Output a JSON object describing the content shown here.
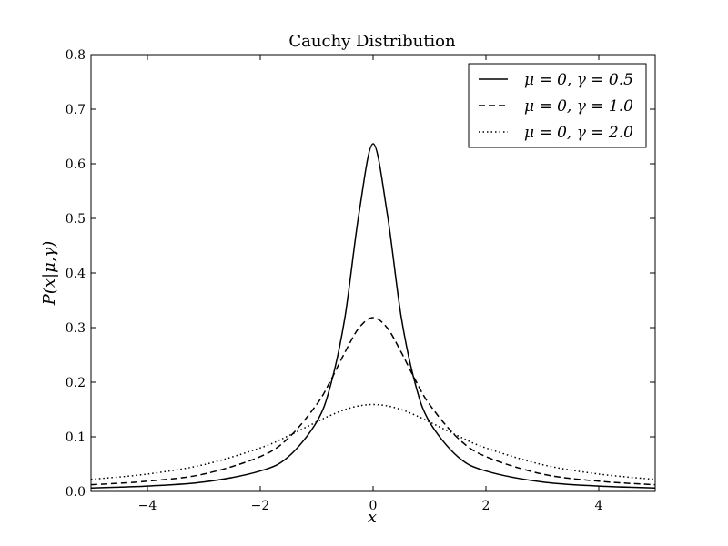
{
  "chart_data": {
    "type": "line",
    "title": "Cauchy Distribution",
    "xlabel": "x",
    "ylabel": "P(x|μ,γ)",
    "xlim": [
      -5,
      5
    ],
    "ylim": [
      0,
      0.8
    ],
    "xticks": [
      -4,
      -2,
      0,
      2,
      4
    ],
    "xtick_labels": [
      "−4",
      "−2",
      "0",
      "2",
      "4"
    ],
    "yticks": [
      0.0,
      0.1,
      0.2,
      0.3,
      0.4,
      0.5,
      0.6,
      0.7,
      0.8
    ],
    "ytick_labels": [
      "0.0",
      "0.1",
      "0.2",
      "0.3",
      "0.4",
      "0.5",
      "0.6",
      "0.7",
      "0.8"
    ],
    "grid": false,
    "legend_position": "top-right",
    "series": [
      {
        "name": "μ = 0, γ = 0.5",
        "style": "solid",
        "color": "#000000",
        "x": [
          -5,
          -4,
          -3,
          -2,
          -1.5,
          -1,
          -0.75,
          -0.5,
          -0.25,
          0,
          0.25,
          0.5,
          0.75,
          1,
          1.5,
          2,
          3,
          4,
          5
        ],
        "y": [
          0.0063,
          0.0098,
          0.0172,
          0.0374,
          0.0637,
          0.1273,
          0.1959,
          0.3183,
          0.5093,
          0.6366,
          0.5093,
          0.3183,
          0.1959,
          0.1273,
          0.0637,
          0.0374,
          0.0172,
          0.0098,
          0.0063
        ]
      },
      {
        "name": "μ = 0, γ = 1.0",
        "style": "dashed",
        "color": "#000000",
        "x": [
          -5,
          -4,
          -3,
          -2,
          -1.5,
          -1,
          -0.75,
          -0.5,
          -0.25,
          0,
          0.25,
          0.5,
          0.75,
          1,
          1.5,
          2,
          3,
          4,
          5
        ],
        "y": [
          0.0122,
          0.0187,
          0.0318,
          0.0637,
          0.0979,
          0.1592,
          0.2037,
          0.2546,
          0.2996,
          0.3183,
          0.2996,
          0.2546,
          0.2037,
          0.1592,
          0.0979,
          0.0637,
          0.0318,
          0.0187,
          0.0122
        ]
      },
      {
        "name": "μ = 0, γ = 2.0",
        "style": "dotted",
        "color": "#000000",
        "x": [
          -5,
          -4,
          -3,
          -2,
          -1.5,
          -1,
          -0.75,
          -0.5,
          -0.25,
          0,
          0.25,
          0.5,
          0.75,
          1,
          1.5,
          2,
          3,
          4,
          5
        ],
        "y": [
          0.022,
          0.0318,
          0.049,
          0.0796,
          0.1019,
          0.1273,
          0.1395,
          0.1498,
          0.1567,
          0.1592,
          0.1567,
          0.1498,
          0.1395,
          0.1273,
          0.1019,
          0.0796,
          0.049,
          0.0318,
          0.022
        ]
      }
    ]
  }
}
